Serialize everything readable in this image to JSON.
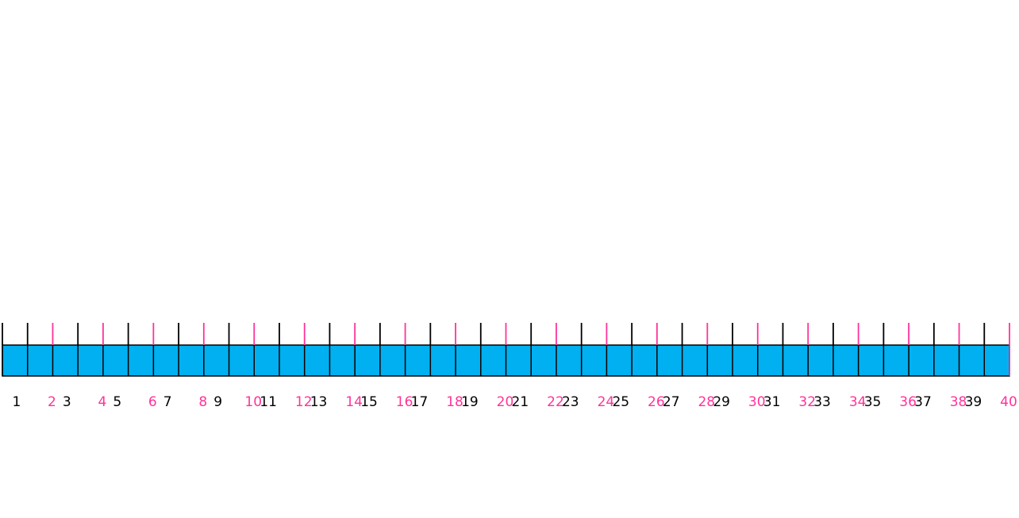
{
  "number_strip": {
    "segments": 40,
    "bar_color": "#00B0F0",
    "odd_color": "#000000",
    "even_color": "#FF3399",
    "labels": [
      "1",
      "2",
      "3",
      "4",
      "5",
      "6",
      "7",
      "8",
      "9",
      "10",
      "11",
      "12",
      "13",
      "14",
      "15",
      "16",
      "17",
      "18",
      "19",
      "20",
      "21",
      "22",
      "23",
      "24",
      "25",
      "26",
      "27",
      "28",
      "29",
      "30",
      "31",
      "32",
      "33",
      "34",
      "35",
      "36",
      "37",
      "38",
      "39",
      "40"
    ]
  }
}
